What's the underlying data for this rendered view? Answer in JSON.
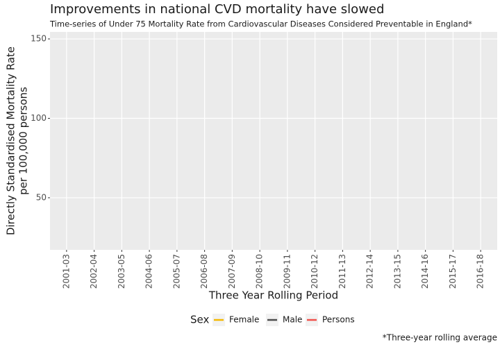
{
  "chart_data": {
    "type": "line",
    "title": "Improvements in national CVD mortality have slowed",
    "subtitle": "Time-series of Under 75 Mortality Rate from Cardiovascular Diseases Considered Preventable in England*",
    "x_label": "Three Year Rolling Period",
    "y_label": [
      "Directly Standardised Mortality Rate",
      "per 100,000 persons"
    ],
    "caption": "*Three-year rolling average",
    "legend_title": "Sex",
    "legend": "bottom",
    "grid": true,
    "categories": [
      "2001-03",
      "2002-04",
      "2003-05",
      "2004-06",
      "2005-07",
      "2006-08",
      "2007-09",
      "2008-10",
      "2009-11",
      "2010-12",
      "2011-13",
      "2012-14",
      "2013-15",
      "2014-16",
      "2015-17",
      "2016-18"
    ],
    "series": [
      {
        "name": "Female",
        "color": "#f5b800",
        "values": [
          null,
          null,
          null,
          null,
          null,
          null,
          null,
          null,
          null,
          null,
          null,
          null,
          null,
          null,
          null,
          null
        ]
      },
      {
        "name": "Male",
        "color": "#4d4d4d",
        "values": [
          null,
          null,
          null,
          null,
          null,
          null,
          null,
          null,
          null,
          null,
          null,
          null,
          null,
          null,
          null,
          null
        ]
      },
      {
        "name": "Persons",
        "color": "#f0504a",
        "values": [
          null,
          null,
          null,
          null,
          null,
          null,
          null,
          null,
          null,
          null,
          null,
          null,
          null,
          null,
          null,
          null
        ]
      }
    ],
    "ylim": [
      17.2,
      154.4
    ],
    "yticks": [
      50,
      100,
      150
    ]
  }
}
